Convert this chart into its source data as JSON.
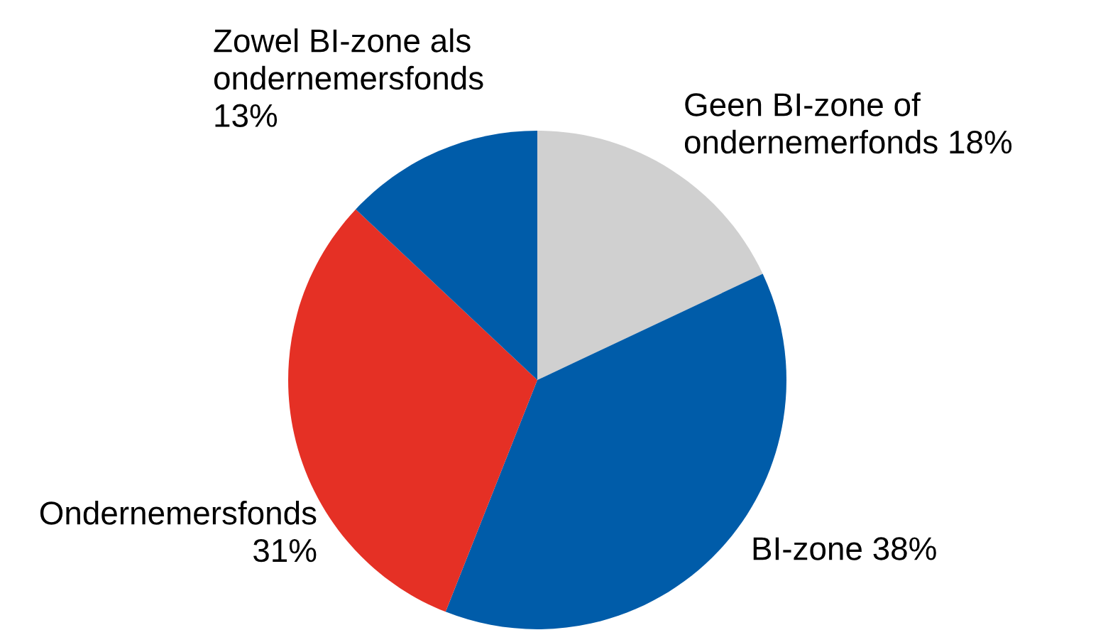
{
  "chart_data": {
    "type": "pie",
    "categories": [
      "Geen BI-zone of\nondernemerfonds",
      "BI-zone",
      "Ondernemersfonds",
      "Zowel BI-zone als\nondernemersfonds"
    ],
    "values": [
      18,
      38,
      31,
      13
    ],
    "value_labels": [
      "18%",
      "38%",
      "31%",
      "13%"
    ],
    "colors": [
      "#d0d0d0",
      "#005ca9",
      "#e53025",
      "#005ca9"
    ]
  }
}
